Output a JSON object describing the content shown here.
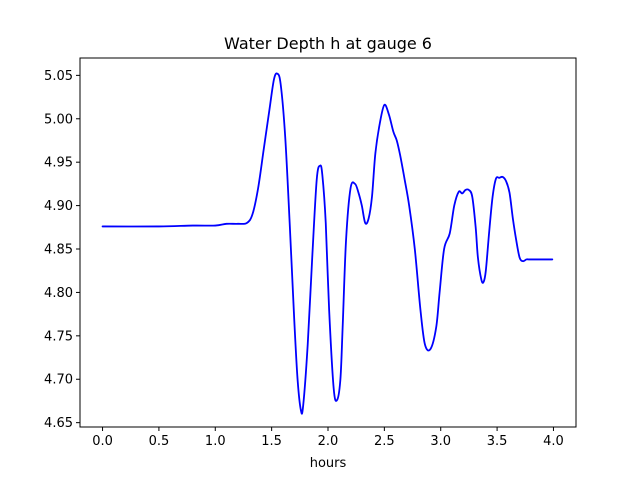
{
  "chart_data": {
    "type": "line",
    "title": "Water Depth h at gauge 6",
    "xlabel": "hours",
    "ylabel": "",
    "xlim": [
      -0.2,
      4.2
    ],
    "ylim": [
      4.645,
      5.07
    ],
    "xticks": [
      0.0,
      0.5,
      1.0,
      1.5,
      2.0,
      2.5,
      3.0,
      3.5,
      4.0
    ],
    "xtick_labels": [
      "0.0",
      "0.5",
      "1.0",
      "1.5",
      "2.0",
      "2.5",
      "3.0",
      "3.5",
      "4.0"
    ],
    "yticks": [
      4.65,
      4.7,
      4.75,
      4.8,
      4.85,
      4.9,
      4.95,
      5.0,
      5.05
    ],
    "ytick_labels": [
      "4.65",
      "4.70",
      "4.75",
      "4.80",
      "4.85",
      "4.90",
      "4.95",
      "5.00",
      "5.05"
    ],
    "grid": false,
    "series": [
      {
        "color": "#0000ff",
        "x": [
          0.0,
          0.5,
          0.8,
          1.0,
          1.1,
          1.2,
          1.28,
          1.33,
          1.38,
          1.43,
          1.48,
          1.52,
          1.55,
          1.58,
          1.62,
          1.66,
          1.7,
          1.73,
          1.76,
          1.78,
          1.82,
          1.86,
          1.9,
          1.93,
          1.95,
          1.98,
          2.01,
          2.05,
          2.08,
          2.11,
          2.13,
          2.16,
          2.2,
          2.24,
          2.27,
          2.3,
          2.33,
          2.36,
          2.39,
          2.42,
          2.46,
          2.5,
          2.54,
          2.58,
          2.61,
          2.64,
          2.68,
          2.72,
          2.77,
          2.82,
          2.86,
          2.91,
          2.96,
          2.99,
          3.03,
          3.08,
          3.12,
          3.16,
          3.19,
          3.22,
          3.25,
          3.28,
          3.31,
          3.33,
          3.36,
          3.38,
          3.4,
          3.43,
          3.46,
          3.49,
          3.52,
          3.55,
          3.58,
          3.61,
          3.64,
          3.67,
          3.7,
          3.73,
          3.76,
          3.78,
          3.8,
          3.84,
          3.87,
          3.91,
          3.94,
          3.97,
          3.99
        ],
        "y": [
          4.876,
          4.876,
          4.877,
          4.877,
          4.879,
          4.879,
          4.88,
          4.89,
          4.92,
          4.965,
          5.01,
          5.045,
          5.052,
          5.04,
          4.98,
          4.88,
          4.77,
          4.7,
          4.664,
          4.67,
          4.74,
          4.84,
          4.93,
          4.946,
          4.935,
          4.88,
          4.78,
          4.69,
          4.676,
          4.7,
          4.76,
          4.86,
          4.92,
          4.925,
          4.915,
          4.9,
          4.88,
          4.885,
          4.91,
          4.96,
          4.995,
          5.016,
          5.005,
          4.985,
          4.975,
          4.958,
          4.93,
          4.9,
          4.85,
          4.78,
          4.74,
          4.735,
          4.76,
          4.8,
          4.85,
          4.868,
          4.9,
          4.916,
          4.914,
          4.918,
          4.918,
          4.91,
          4.875,
          4.84,
          4.815,
          4.812,
          4.825,
          4.87,
          4.91,
          4.931,
          4.932,
          4.933,
          4.928,
          4.915,
          4.885,
          4.86,
          4.84,
          4.836,
          4.838,
          4.838,
          4.838,
          4.838,
          4.838,
          4.838,
          4.838,
          4.838,
          4.838
        ]
      }
    ]
  }
}
